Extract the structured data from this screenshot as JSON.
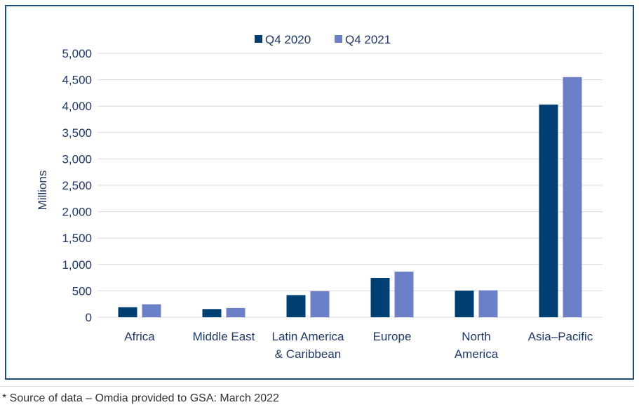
{
  "chart_data": {
    "type": "bar",
    "title": "",
    "xlabel": "",
    "ylabel": "Millions",
    "ylim": [
      0,
      5000
    ],
    "yticks": [
      0,
      500,
      1000,
      1500,
      2000,
      2500,
      3000,
      3500,
      4000,
      4500,
      5000
    ],
    "ytick_labels": [
      "0",
      "500",
      "1,000",
      "1,500",
      "2,000",
      "2,500",
      "3,000",
      "3,500",
      "4,000",
      "4,500",
      "5,000"
    ],
    "grid": true,
    "legend_position": "top-center",
    "categories": [
      [
        "Africa"
      ],
      [
        "Middle East"
      ],
      [
        "Latin America",
        "& Caribbean"
      ],
      [
        "Europe"
      ],
      [
        "North",
        "America"
      ],
      [
        "Asia–Pacific"
      ]
    ],
    "series": [
      {
        "name": "Q4 2020",
        "color": "#003f72",
        "values": [
          190,
          155,
          420,
          745,
          505,
          4030
        ]
      },
      {
        "name": "Q4 2021",
        "color": "#6c80c8",
        "values": [
          245,
          175,
          495,
          865,
          510,
          4550
        ]
      }
    ]
  },
  "footer": {
    "source_note": "* Source of data – Omdia provided to GSA: March 2022"
  },
  "colors": {
    "frame_border": "#1f4e79",
    "gridline": "#d9d9d9",
    "text": "#1f3864"
  }
}
